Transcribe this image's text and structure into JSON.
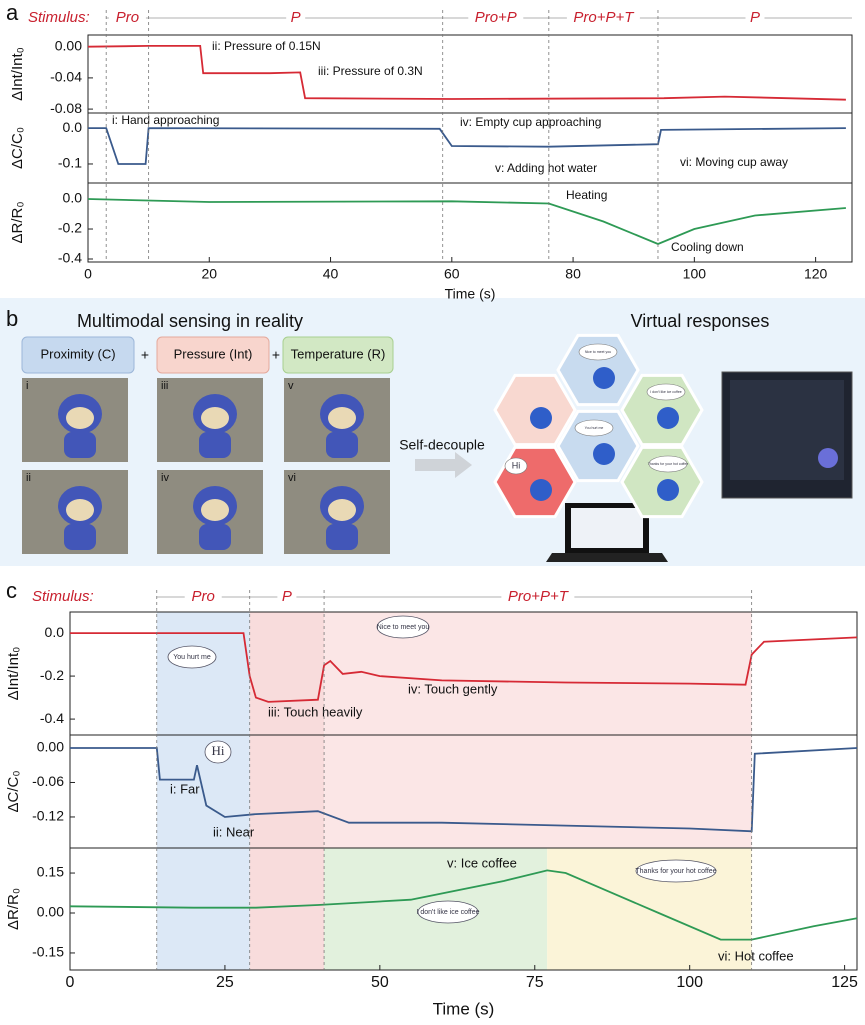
{
  "panel_labels": [
    "a",
    "b",
    "c"
  ],
  "panel_a": {
    "stimulus": {
      "label": "Stimulus:",
      "segments": [
        {
          "label": "Pro",
          "start": 3,
          "end": 10
        },
        {
          "label": "P",
          "start": 10,
          "end": 58.5
        },
        {
          "label": "Pro+P",
          "start": 58.5,
          "end": 76
        },
        {
          "label": "Pro+P+T",
          "start": 76,
          "end": 94
        },
        {
          "label": "P",
          "start": 94,
          "end": 126
        }
      ]
    }
  },
  "panel_b": {
    "left_title": "Multimodal sensing in reality",
    "right_title": "Virtual responses",
    "modes": [
      "Proximity (C)",
      "Pressure (Int)",
      "Temperature (R)"
    ],
    "plus": "+",
    "photo_labels": [
      "i",
      "ii",
      "iii",
      "iv",
      "v",
      "vi"
    ],
    "arrow_label": "Self-decouple",
    "bubbles": [
      "Nice to meet you",
      "I don't like ice coffee",
      "You hurt me",
      "Thanks for your hot coffee",
      "Hi"
    ]
  },
  "panel_c": {
    "stimulus": {
      "label": "Stimulus:",
      "segments": [
        {
          "label": "Pro",
          "start": 14,
          "end": 29
        },
        {
          "label": "P",
          "start": 29,
          "end": 41
        },
        {
          "label": "Pro+P+T",
          "start": 41,
          "end": 110
        }
      ]
    }
  },
  "chart_data": [
    {
      "type": "line",
      "ylabel": "ΔInt/Int₀",
      "xlim": [
        0,
        126
      ],
      "ylim": [
        -0.085,
        0.015
      ],
      "yticks": [
        {
          "value": 0,
          "label": "0.00"
        },
        {
          "value": -0.04,
          "label": "-0.04"
        },
        {
          "value": -0.08,
          "label": "-0.08"
        }
      ],
      "x": [
        0,
        10,
        18.5,
        19,
        30,
        35,
        35.8,
        60,
        95,
        105,
        125
      ],
      "series": [
        {
          "color": "#d62a35",
          "values": [
            0,
            0.001,
            0.001,
            -0.034,
            -0.034,
            -0.033,
            -0.066,
            -0.067,
            -0.066,
            -0.064,
            -0.068
          ]
        }
      ],
      "annotations": [
        "ii: Pressure of 0.15N",
        "iii: Pressure of 0.3N"
      ]
    },
    {
      "type": "line",
      "ylabel": "ΔC/C₀",
      "xlim": [
        0,
        126
      ],
      "ylim": [
        -0.153,
        0.042
      ],
      "yticks": [
        {
          "value": 0,
          "label": "0.0"
        },
        {
          "value": -0.1,
          "label": "-0.1"
        }
      ],
      "x": [
        0,
        3,
        5,
        9.5,
        10,
        58,
        60,
        76,
        94,
        94.5,
        125
      ],
      "series": [
        {
          "color": "#3a5a8c",
          "values": [
            0,
            0,
            -0.1,
            -0.1,
            0,
            -0.002,
            -0.05,
            -0.052,
            -0.045,
            -0.005,
            0
          ]
        }
      ],
      "annotations": [
        "i: Hand approaching",
        "iv: Empty cup approaching",
        "v: Adding hot water",
        "vi: Moving cup away"
      ]
    },
    {
      "type": "line",
      "ylabel": "ΔR/R₀",
      "xlim": [
        0,
        126
      ],
      "ylim": [
        -0.42,
        0.107
      ],
      "yticks": [
        {
          "value": 0,
          "label": "0.0"
        },
        {
          "value": -0.2,
          "label": "-0.2"
        },
        {
          "value": -0.4,
          "label": "-0.4"
        }
      ],
      "x": [
        0,
        20,
        60,
        76,
        85,
        94,
        100,
        110,
        125
      ],
      "series": [
        {
          "color": "#2e9a55",
          "values": [
            0,
            -0.02,
            -0.015,
            -0.03,
            -0.15,
            -0.3,
            -0.2,
            -0.11,
            -0.06
          ]
        }
      ],
      "annotations": [
        "Heating",
        "Cooling down"
      ],
      "xticks": [
        0,
        20,
        40,
        60,
        80,
        100,
        120
      ],
      "xlabel": "Time (s)"
    },
    {
      "type": "line",
      "ylabel": "ΔInt/Int₀",
      "xlim": [
        0,
        127
      ],
      "ylim": [
        -0.474,
        0.098
      ],
      "yticks": [
        {
          "value": 0,
          "label": "0.0"
        },
        {
          "value": -0.2,
          "label": "-0.2"
        },
        {
          "value": -0.4,
          "label": "-0.4"
        }
      ],
      "bands": [
        {
          "start": 14,
          "end": 29,
          "color": "#dce8f6"
        },
        {
          "start": 29,
          "end": 41,
          "color": "#f8dcdc"
        },
        {
          "start": 41,
          "end": 110,
          "color": "#fbe6e6"
        }
      ],
      "x": [
        0,
        28,
        29,
        30,
        32,
        40,
        41,
        42,
        44,
        47,
        50,
        60,
        80,
        100,
        109,
        110,
        112,
        127
      ],
      "series": [
        {
          "color": "#d62a35",
          "values": [
            0,
            0,
            -0.2,
            -0.3,
            -0.32,
            -0.31,
            -0.15,
            -0.13,
            -0.19,
            -0.18,
            -0.2,
            -0.22,
            -0.23,
            -0.235,
            -0.24,
            -0.1,
            -0.04,
            -0.02
          ]
        }
      ],
      "annotations": [
        "iii: Touch heavily",
        "iv: Touch gently"
      ],
      "bubbles": [
        "You hurt me",
        "Nice to meet you"
      ]
    },
    {
      "type": "line",
      "ylabel": "ΔC/C₀",
      "xlim": [
        0,
        127
      ],
      "ylim": [
        -0.174,
        0.0226
      ],
      "yticks": [
        {
          "value": 0,
          "label": "0.00"
        },
        {
          "value": -0.06,
          "label": "-0.06"
        },
        {
          "value": -0.12,
          "label": "-0.12"
        }
      ],
      "bands": [
        {
          "start": 14,
          "end": 29,
          "color": "#dce8f6"
        },
        {
          "start": 29,
          "end": 41,
          "color": "#f8dcdc"
        },
        {
          "start": 41,
          "end": 110,
          "color": "#fbe6e6"
        }
      ],
      "x": [
        0,
        14,
        14.5,
        20,
        20.5,
        22,
        25,
        30,
        40,
        45,
        60,
        80,
        100,
        110,
        110.5,
        127
      ],
      "series": [
        {
          "color": "#3a5a8c",
          "values": [
            0,
            0,
            -0.055,
            -0.055,
            -0.03,
            -0.1,
            -0.12,
            -0.115,
            -0.11,
            -0.13,
            -0.13,
            -0.135,
            -0.14,
            -0.145,
            -0.01,
            0
          ]
        }
      ],
      "annotations": [
        "i: Far",
        "ii: Near"
      ],
      "bubbles": [
        "Hi"
      ]
    },
    {
      "type": "line",
      "ylabel": "ΔR/R₀",
      "xlim": [
        0,
        127
      ],
      "ylim": [
        -0.214,
        0.244
      ],
      "yticks": [
        {
          "value": 0.15,
          "label": "0.15"
        },
        {
          "value": 0,
          "label": "0.00"
        },
        {
          "value": -0.15,
          "label": "-0.15"
        }
      ],
      "bands": [
        {
          "start": 14,
          "end": 29,
          "color": "#dce8f6"
        },
        {
          "start": 29,
          "end": 41,
          "color": "#f8dcdc"
        },
        {
          "start": 41,
          "end": 77,
          "color": "#e2f1dd"
        },
        {
          "start": 77,
          "end": 110,
          "color": "#fbf4d8"
        }
      ],
      "x": [
        0,
        20,
        30,
        40,
        55,
        70,
        77,
        80,
        95,
        105,
        110,
        120,
        127
      ],
      "series": [
        {
          "color": "#2e9a55",
          "values": [
            0.025,
            0.02,
            0.02,
            0.03,
            0.05,
            0.12,
            0.16,
            0.15,
            0,
            -0.1,
            -0.1,
            -0.05,
            -0.02
          ]
        }
      ],
      "annotations": [
        "v: Ice coffee",
        "vi: Hot coffee"
      ],
      "bubbles": [
        "I don't like ice coffee",
        "Thanks for your hot coffee"
      ],
      "xticks": [
        0,
        25,
        50,
        75,
        100,
        125
      ],
      "xlabel": "Time (s)"
    }
  ]
}
